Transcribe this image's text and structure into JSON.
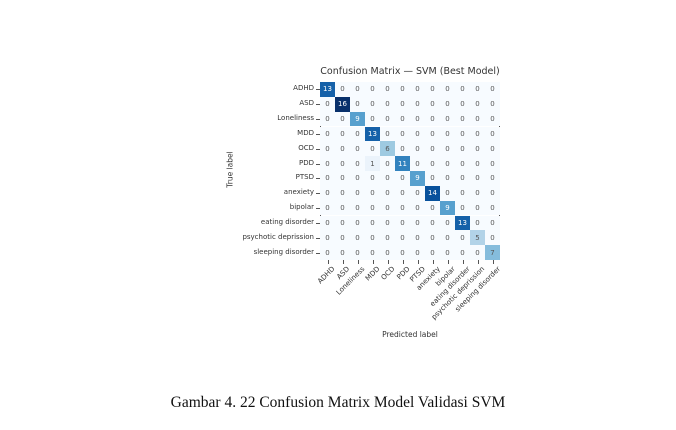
{
  "chart_data": {
    "type": "heatmap",
    "title": "Confusion Matrix — SVM (Best Model)",
    "xlabel": "Predicted label",
    "ylabel": "True label",
    "colormap": "Blues",
    "categories": [
      "ADHD",
      "ASD",
      "Loneliness",
      "MDD",
      "OCD",
      "PDD",
      "PTSD",
      "anexiety",
      "bipolar",
      "eating disorder",
      "psychotic deprission",
      "sleeping disorder"
    ],
    "matrix": [
      [
        13,
        0,
        0,
        0,
        0,
        0,
        0,
        0,
        0,
        0,
        0,
        0
      ],
      [
        0,
        16,
        0,
        0,
        0,
        0,
        0,
        0,
        0,
        0,
        0,
        0
      ],
      [
        0,
        0,
        9,
        0,
        0,
        0,
        0,
        0,
        0,
        0,
        0,
        0
      ],
      [
        0,
        0,
        0,
        13,
        0,
        0,
        0,
        0,
        0,
        0,
        0,
        0
      ],
      [
        0,
        0,
        0,
        0,
        6,
        0,
        0,
        0,
        0,
        0,
        0,
        0
      ],
      [
        0,
        0,
        0,
        1,
        0,
        11,
        0,
        0,
        0,
        0,
        0,
        0
      ],
      [
        0,
        0,
        0,
        0,
        0,
        0,
        9,
        0,
        0,
        0,
        0,
        0
      ],
      [
        0,
        0,
        0,
        0,
        0,
        0,
        0,
        14,
        0,
        0,
        0,
        0
      ],
      [
        0,
        0,
        0,
        0,
        0,
        0,
        0,
        0,
        9,
        0,
        0,
        0
      ],
      [
        0,
        0,
        0,
        0,
        0,
        0,
        0,
        0,
        0,
        13,
        0,
        0
      ],
      [
        0,
        0,
        0,
        0,
        0,
        0,
        0,
        0,
        0,
        0,
        5,
        0
      ],
      [
        0,
        0,
        0,
        0,
        0,
        0,
        0,
        0,
        0,
        0,
        0,
        7
      ]
    ],
    "vmin": 0,
    "vmax": 16
  },
  "caption": "Gambar 4. 22 Confusion Matrix Model Validasi SVM"
}
